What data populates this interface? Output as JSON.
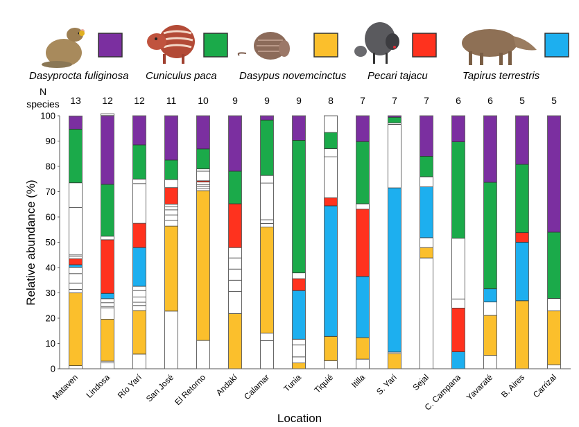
{
  "chart_data": {
    "type": "bar",
    "stacked": true,
    "title": "",
    "xlabel": "Location",
    "ylabel": "Relative abundance (%)",
    "ylim": [
      0,
      100
    ],
    "yticks": [
      0,
      10,
      20,
      30,
      40,
      50,
      60,
      70,
      80,
      90,
      100
    ],
    "n_species_label_line1": "N",
    "n_species_label_line2": "species",
    "legend_placement": "top",
    "legend": [
      {
        "key": "dasyprocta",
        "name": "Dasyprocta fuliginosa",
        "color": "#7B2FA0",
        "icon": "agouti-illustration"
      },
      {
        "key": "cuniculus",
        "name": "Cuniculus paca",
        "color": "#1BAA4A",
        "icon": "paca-illustration"
      },
      {
        "key": "dasypus",
        "name": "Dasypus novemcinctus",
        "color": "#FBBF2C",
        "icon": "armadillo-illustration"
      },
      {
        "key": "pecari",
        "name": "Pecari tajacu",
        "color": "#FF321E",
        "icon": "peccary-illustration"
      },
      {
        "key": "tapirus",
        "name": "Tapirus terrestris",
        "color": "#1DAFEF",
        "icon": "tapir-illustration"
      }
    ],
    "other_color": "#FFFFFF",
    "categories": [
      "Mataven",
      "Lindosa",
      "Río Yarí",
      "San José",
      "El Retorno",
      "Andakí",
      "Calamar",
      "Tunia",
      "Tiquié",
      "Itilla",
      "S. Yarí",
      "Sejal",
      "C. Campana",
      "Yavaraté",
      "B. Aires",
      "Carrizal"
    ],
    "n_species": [
      13,
      12,
      12,
      11,
      10,
      9,
      9,
      9,
      8,
      7,
      7,
      7,
      6,
      6,
      5,
      5
    ],
    "stacks": [
      {
        "location": "Mataven",
        "segments": [
          {
            "sp": "other",
            "v": 1.2
          },
          {
            "sp": "dasypus",
            "v": 28.8
          },
          {
            "sp": "other",
            "v": 1.4
          },
          {
            "sp": "other",
            "v": 2.5
          },
          {
            "sp": "other",
            "v": 3.7
          },
          {
            "sp": "other",
            "v": 2.5
          },
          {
            "sp": "tapirus",
            "v": 1.0
          },
          {
            "sp": "pecari",
            "v": 2.4
          },
          {
            "sp": "other",
            "v": 1.0
          },
          {
            "sp": "other",
            "v": 0.5
          },
          {
            "sp": "other",
            "v": 18.7
          },
          {
            "sp": "other",
            "v": 9.8
          },
          {
            "sp": "cuniculus",
            "v": 21.2
          },
          {
            "sp": "dasyprocta",
            "v": 5.2
          }
        ]
      },
      {
        "location": "Lindosa",
        "segments": [
          {
            "sp": "other",
            "v": 2.3
          },
          {
            "sp": "other",
            "v": 0.7
          },
          {
            "sp": "dasypus",
            "v": 16.6
          },
          {
            "sp": "other",
            "v": 4.5
          },
          {
            "sp": "other",
            "v": 0.5
          },
          {
            "sp": "other",
            "v": 1.5
          },
          {
            "sp": "other",
            "v": 1.6
          },
          {
            "sp": "tapirus",
            "v": 2.1
          },
          {
            "sp": "pecari",
            "v": 21.2
          },
          {
            "sp": "other",
            "v": 1.4
          },
          {
            "sp": "cuniculus",
            "v": 20.5
          },
          {
            "sp": "dasyprocta",
            "v": 27.2
          },
          {
            "sp": "other",
            "v": 0.7
          }
        ]
      },
      {
        "location": "Río Yarí",
        "segments": [
          {
            "sp": "other",
            "v": 5.8
          },
          {
            "sp": "dasypus",
            "v": 17.2
          },
          {
            "sp": "other",
            "v": 2.0
          },
          {
            "sp": "other",
            "v": 1.3
          },
          {
            "sp": "other",
            "v": 2.1
          },
          {
            "sp": "other",
            "v": 2.5
          },
          {
            "sp": "other",
            "v": 1.7
          },
          {
            "sp": "tapirus",
            "v": 15.3
          },
          {
            "sp": "pecari",
            "v": 9.6
          },
          {
            "sp": "other",
            "v": 15.7
          },
          {
            "sp": "other",
            "v": 1.8
          },
          {
            "sp": "cuniculus",
            "v": 13.5
          },
          {
            "sp": "dasyprocta",
            "v": 11.5
          }
        ]
      },
      {
        "location": "San José",
        "segments": [
          {
            "sp": "other",
            "v": 22.8
          },
          {
            "sp": "dasypus",
            "v": 33.6
          },
          {
            "sp": "other",
            "v": 2.2
          },
          {
            "sp": "other",
            "v": 2.2
          },
          {
            "sp": "other",
            "v": 2.0
          },
          {
            "sp": "other",
            "v": 1.3
          },
          {
            "sp": "other",
            "v": 1.0
          },
          {
            "sp": "pecari",
            "v": 6.5
          },
          {
            "sp": "other",
            "v": 3.2
          },
          {
            "sp": "cuniculus",
            "v": 7.7
          },
          {
            "sp": "dasyprocta",
            "v": 17.5
          }
        ]
      },
      {
        "location": "El Retorno",
        "segments": [
          {
            "sp": "other",
            "v": 11.2
          },
          {
            "sp": "dasypus",
            "v": 59.2
          },
          {
            "sp": "other",
            "v": 0.8
          },
          {
            "sp": "other",
            "v": 0.7
          },
          {
            "sp": "other",
            "v": 0.8
          },
          {
            "sp": "other",
            "v": 1.1
          },
          {
            "sp": "pecari",
            "v": 0.5
          },
          {
            "sp": "other",
            "v": 3.8
          },
          {
            "sp": "other",
            "v": 0.9
          },
          {
            "sp": "cuniculus",
            "v": 7.9
          },
          {
            "sp": "dasyprocta",
            "v": 13.1
          }
        ]
      },
      {
        "location": "Andakí",
        "segments": [
          {
            "sp": "dasypus",
            "v": 21.8
          },
          {
            "sp": "other",
            "v": 8.8
          },
          {
            "sp": "other",
            "v": 4.4
          },
          {
            "sp": "other",
            "v": 4.4
          },
          {
            "sp": "other",
            "v": 4.4
          },
          {
            "sp": "other",
            "v": 4.1
          },
          {
            "sp": "pecari",
            "v": 17.3
          },
          {
            "sp": "cuniculus",
            "v": 12.9
          },
          {
            "sp": "dasyprocta",
            "v": 21.9
          }
        ]
      },
      {
        "location": "Calamar",
        "segments": [
          {
            "sp": "other",
            "v": 11.1
          },
          {
            "sp": "other",
            "v": 3.0
          },
          {
            "sp": "dasypus",
            "v": 41.9
          },
          {
            "sp": "other",
            "v": 1.4
          },
          {
            "sp": "other",
            "v": 1.5
          },
          {
            "sp": "other",
            "v": 14.5
          },
          {
            "sp": "other",
            "v": 3.0
          },
          {
            "sp": "cuniculus",
            "v": 21.9
          },
          {
            "sp": "dasyprocta",
            "v": 1.7
          }
        ]
      },
      {
        "location": "Tunia",
        "segments": [
          {
            "sp": "dasypus",
            "v": 2.3
          },
          {
            "sp": "other",
            "v": 2.4
          },
          {
            "sp": "other",
            "v": 4.7
          },
          {
            "sp": "other",
            "v": 2.3
          },
          {
            "sp": "tapirus",
            "v": 19.2
          },
          {
            "sp": "pecari",
            "v": 4.7
          },
          {
            "sp": "other",
            "v": 2.3
          },
          {
            "sp": "cuniculus",
            "v": 52.4
          },
          {
            "sp": "dasyprocta",
            "v": 9.7
          }
        ]
      },
      {
        "location": "Tiquié",
        "segments": [
          {
            "sp": "other",
            "v": 3.2
          },
          {
            "sp": "dasypus",
            "v": 9.6
          },
          {
            "sp": "tapirus",
            "v": 51.6
          },
          {
            "sp": "pecari",
            "v": 3.2
          },
          {
            "sp": "other",
            "v": 16.2
          },
          {
            "sp": "other",
            "v": 3.2
          },
          {
            "sp": "cuniculus",
            "v": 6.4
          },
          {
            "sp": "other",
            "v": 6.6
          }
        ]
      },
      {
        "location": "Itilla",
        "segments": [
          {
            "sp": "other",
            "v": 3.8
          },
          {
            "sp": "dasypus",
            "v": 8.5
          },
          {
            "sp": "tapirus",
            "v": 24.2
          },
          {
            "sp": "pecari",
            "v": 26.6
          },
          {
            "sp": "other",
            "v": 2.1
          },
          {
            "sp": "cuniculus",
            "v": 24.6
          },
          {
            "sp": "dasyprocta",
            "v": 10.2
          }
        ]
      },
      {
        "location": "S. Yarí",
        "segments": [
          {
            "sp": "dasypus",
            "v": 6.0
          },
          {
            "sp": "other",
            "v": 0.6
          },
          {
            "sp": "tapirus",
            "v": 64.9
          },
          {
            "sp": "other",
            "v": 25.1
          },
          {
            "sp": "other",
            "v": 0.6
          },
          {
            "sp": "cuniculus",
            "v": 2.2
          },
          {
            "sp": "dasyprocta",
            "v": 0.6
          }
        ]
      },
      {
        "location": "Sejal",
        "segments": [
          {
            "sp": "other",
            "v": 43.8
          },
          {
            "sp": "dasypus",
            "v": 4.1
          },
          {
            "sp": "other",
            "v": 3.9
          },
          {
            "sp": "tapirus",
            "v": 20.1
          },
          {
            "sp": "other",
            "v": 4.0
          },
          {
            "sp": "cuniculus",
            "v": 8.1
          },
          {
            "sp": "dasyprocta",
            "v": 16.0
          }
        ]
      },
      {
        "location": "C. Campana",
        "segments": [
          {
            "sp": "tapirus",
            "v": 6.7
          },
          {
            "sp": "pecari",
            "v": 17.3
          },
          {
            "sp": "other",
            "v": 3.6
          },
          {
            "sp": "other",
            "v": 24.0
          },
          {
            "sp": "cuniculus",
            "v": 38.1
          },
          {
            "sp": "dasyprocta",
            "v": 10.3
          }
        ]
      },
      {
        "location": "Yavaraté",
        "segments": [
          {
            "sp": "other",
            "v": 5.3
          },
          {
            "sp": "dasypus",
            "v": 15.8
          },
          {
            "sp": "other",
            "v": 5.3
          },
          {
            "sp": "tapirus",
            "v": 5.2
          },
          {
            "sp": "cuniculus",
            "v": 42.1
          },
          {
            "sp": "dasyprocta",
            "v": 26.3
          }
        ]
      },
      {
        "location": "B. Aires",
        "segments": [
          {
            "sp": "dasypus",
            "v": 26.9
          },
          {
            "sp": "tapirus",
            "v": 23.1
          },
          {
            "sp": "pecari",
            "v": 3.8
          },
          {
            "sp": "cuniculus",
            "v": 27.0
          },
          {
            "sp": "dasyprocta",
            "v": 19.2
          }
        ]
      },
      {
        "location": "Carrizal",
        "segments": [
          {
            "sp": "other",
            "v": 1.6
          },
          {
            "sp": "dasypus",
            "v": 21.3
          },
          {
            "sp": "other",
            "v": 4.9
          },
          {
            "sp": "cuniculus",
            "v": 26.2
          },
          {
            "sp": "dasyprocta",
            "v": 46.0
          }
        ]
      }
    ]
  }
}
